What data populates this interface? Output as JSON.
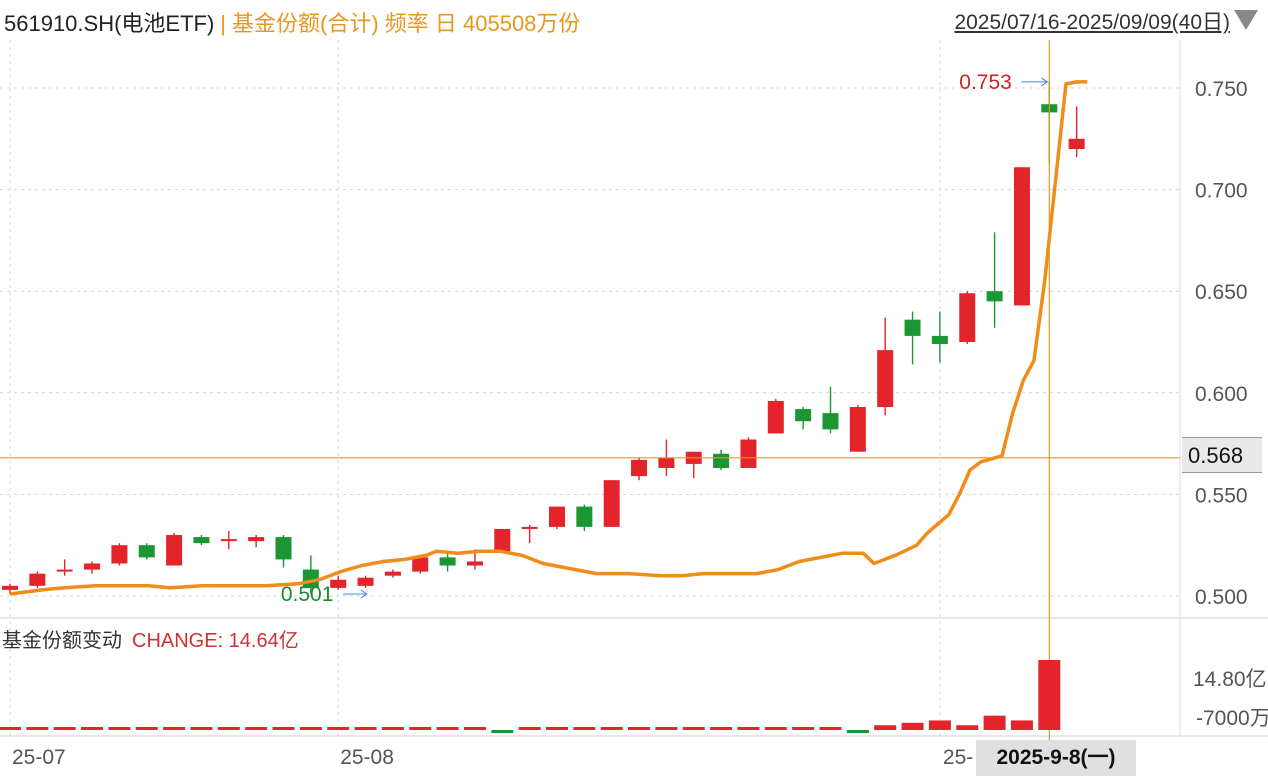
{
  "header": {
    "code": "561910.SH(电池ETF)",
    "separator": "|",
    "meta": "基金份额(合计) 频率 日 405508万份",
    "range": "2025/07/16-2025/09/09(40日)"
  },
  "sub_panel": {
    "title": "基金份额变动",
    "change_label": "CHANGE: 14.64亿"
  },
  "crosshair": {
    "price_label": "0.568",
    "date_label": "2025-9-8(一)"
  },
  "colors": {
    "up": "#e3242b",
    "down": "#1a9632",
    "share_line": "#f08c1a",
    "crosshair": "#e8961e",
    "grid": "#d4d4d4"
  },
  "chart_data": [
    {
      "type": "candlestick",
      "title": "",
      "y_ticks": [
        0.5,
        0.55,
        0.6,
        0.65,
        0.7,
        0.75
      ],
      "y_tick_labels": [
        "0.500",
        "0.550",
        "0.600",
        "0.650",
        "0.700",
        "0.750"
      ],
      "x_tick_labels": [
        "25-07",
        "25-08",
        "25-"
      ],
      "x_tick_index": [
        0,
        12,
        34
      ],
      "ylim": [
        0.49,
        0.76
      ],
      "max_annotation": {
        "label": "0.753",
        "value": 0.753,
        "index": 38
      },
      "min_annotation": {
        "label": "0.501",
        "value": 0.501,
        "index": 11
      },
      "ohlc": [
        {
          "o": 0.503,
          "h": 0.506,
          "l": 0.501,
          "c": 0.505
        },
        {
          "o": 0.505,
          "h": 0.512,
          "l": 0.504,
          "c": 0.511
        },
        {
          "o": 0.512,
          "h": 0.518,
          "l": 0.51,
          "c": 0.513
        },
        {
          "o": 0.513,
          "h": 0.517,
          "l": 0.511,
          "c": 0.516
        },
        {
          "o": 0.516,
          "h": 0.526,
          "l": 0.515,
          "c": 0.525
        },
        {
          "o": 0.525,
          "h": 0.526,
          "l": 0.518,
          "c": 0.519
        },
        {
          "o": 0.515,
          "h": 0.531,
          "l": 0.515,
          "c": 0.53
        },
        {
          "o": 0.529,
          "h": 0.53,
          "l": 0.525,
          "c": 0.526
        },
        {
          "o": 0.527,
          "h": 0.532,
          "l": 0.523,
          "c": 0.528
        },
        {
          "o": 0.527,
          "h": 0.53,
          "l": 0.524,
          "c": 0.529
        },
        {
          "o": 0.529,
          "h": 0.53,
          "l": 0.514,
          "c": 0.518
        },
        {
          "o": 0.513,
          "h": 0.52,
          "l": 0.501,
          "c": 0.504
        },
        {
          "o": 0.504,
          "h": 0.51,
          "l": 0.503,
          "c": 0.508
        },
        {
          "o": 0.505,
          "h": 0.51,
          "l": 0.504,
          "c": 0.509
        },
        {
          "o": 0.51,
          "h": 0.513,
          "l": 0.509,
          "c": 0.512
        },
        {
          "o": 0.512,
          "h": 0.52,
          "l": 0.511,
          "c": 0.519
        },
        {
          "o": 0.519,
          "h": 0.521,
          "l": 0.512,
          "c": 0.515
        },
        {
          "o": 0.515,
          "h": 0.523,
          "l": 0.513,
          "c": 0.517
        },
        {
          "o": 0.522,
          "h": 0.533,
          "l": 0.522,
          "c": 0.533
        },
        {
          "o": 0.533,
          "h": 0.535,
          "l": 0.526,
          "c": 0.534
        },
        {
          "o": 0.534,
          "h": 0.544,
          "l": 0.533,
          "c": 0.544
        },
        {
          "o": 0.544,
          "h": 0.545,
          "l": 0.532,
          "c": 0.534
        },
        {
          "o": 0.534,
          "h": 0.557,
          "l": 0.534,
          "c": 0.557
        },
        {
          "o": 0.559,
          "h": 0.568,
          "l": 0.557,
          "c": 0.567
        },
        {
          "o": 0.563,
          "h": 0.577,
          "l": 0.559,
          "c": 0.568
        },
        {
          "o": 0.565,
          "h": 0.571,
          "l": 0.558,
          "c": 0.571
        },
        {
          "o": 0.57,
          "h": 0.572,
          "l": 0.562,
          "c": 0.563
        },
        {
          "o": 0.563,
          "h": 0.578,
          "l": 0.563,
          "c": 0.577
        },
        {
          "o": 0.58,
          "h": 0.597,
          "l": 0.58,
          "c": 0.596
        },
        {
          "o": 0.592,
          "h": 0.593,
          "l": 0.582,
          "c": 0.586
        },
        {
          "o": 0.59,
          "h": 0.603,
          "l": 0.58,
          "c": 0.582
        },
        {
          "o": 0.571,
          "h": 0.594,
          "l": 0.571,
          "c": 0.593
        },
        {
          "o": 0.593,
          "h": 0.637,
          "l": 0.589,
          "c": 0.621
        },
        {
          "o": 0.636,
          "h": 0.64,
          "l": 0.614,
          "c": 0.628
        },
        {
          "o": 0.628,
          "h": 0.64,
          "l": 0.615,
          "c": 0.624
        },
        {
          "o": 0.625,
          "h": 0.65,
          "l": 0.624,
          "c": 0.649
        },
        {
          "o": 0.65,
          "h": 0.679,
          "l": 0.632,
          "c": 0.645
        },
        {
          "o": 0.643,
          "h": 0.711,
          "l": 0.643,
          "c": 0.711
        },
        {
          "o": 0.742,
          "h": 0.753,
          "l": 0.713,
          "c": 0.738
        },
        {
          "o": 0.72,
          "h": 0.741,
          "l": 0.716,
          "c": 0.725
        }
      ],
      "share_line": [
        0.501,
        0.503,
        0.504,
        0.505,
        0.505,
        0.505,
        0.504,
        0.505,
        0.505,
        0.505,
        0.505,
        0.506,
        0.508,
        0.512,
        0.515,
        0.517,
        0.518,
        0.52,
        0.522,
        0.521,
        0.522,
        0.522,
        0.52,
        0.516,
        0.514,
        0.511,
        0.511,
        0.51,
        0.51,
        0.511,
        0.511,
        0.511,
        0.513,
        0.517,
        0.519,
        0.521,
        0.521,
        0.516,
        0.52,
        0.525,
        0.531,
        0.54,
        0.55,
        0.562,
        0.566,
        0.569,
        0.59,
        0.606,
        0.616,
        0.655,
        0.752,
        0.753,
        0.753
      ],
      "share_line_x_fraction": [
        0.0,
        0.03,
        0.05,
        0.08,
        0.1,
        0.13,
        0.15,
        0.18,
        0.2,
        0.22,
        0.24,
        0.27,
        0.29,
        0.31,
        0.33,
        0.35,
        0.37,
        0.39,
        0.4,
        0.42,
        0.44,
        0.46,
        0.48,
        0.5,
        0.52,
        0.55,
        0.58,
        0.61,
        0.63,
        0.65,
        0.67,
        0.7,
        0.72,
        0.74,
        0.76,
        0.78,
        0.8,
        0.81,
        0.83,
        0.85,
        0.86,
        0.88,
        0.89,
        0.9,
        0.91,
        0.93,
        0.94,
        0.95,
        0.96,
        0.97,
        0.99,
        1.0,
        1.01
      ]
    },
    {
      "type": "bar",
      "title": "",
      "y_tick_labels": [
        "14.80亿",
        "-7000万"
      ],
      "values_yi": [
        0.25,
        0.25,
        0.25,
        0.25,
        0.25,
        0.25,
        0.25,
        0.2,
        0.2,
        0.4,
        0.3,
        0.2,
        0.2,
        0.2,
        0.2,
        0.2,
        0.15,
        0.2,
        -0.25,
        0.2,
        0.2,
        0.2,
        0.2,
        0.2,
        0.2,
        0.2,
        0.2,
        0.2,
        0.2,
        0.2,
        0.2,
        -0.3,
        1.0,
        1.5,
        2.0,
        1.0,
        3.0,
        2.0,
        14.64,
        0
      ]
    }
  ]
}
